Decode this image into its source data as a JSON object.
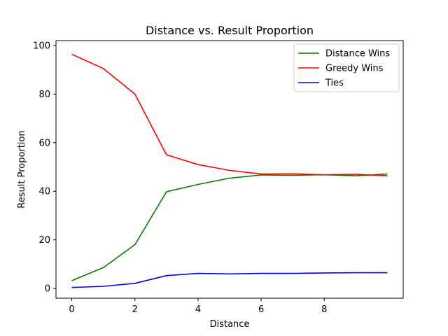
{
  "chart_data": {
    "type": "line",
    "title": "Distance vs. Result Proportion",
    "xlabel": "Distance",
    "ylabel": "Result Proportion",
    "x": [
      0,
      1,
      2,
      3,
      4,
      5,
      6,
      7,
      8,
      9,
      10
    ],
    "xlim": [
      -0.5,
      10.5
    ],
    "ylim": [
      -4,
      102
    ],
    "xticks": [
      0,
      2,
      4,
      6,
      8
    ],
    "yticks": [
      0,
      20,
      40,
      60,
      80,
      100
    ],
    "grid": false,
    "legend_position": "top-right",
    "series": [
      {
        "name": "Distance Wins",
        "color": "#008000",
        "values": [
          3.2,
          8.6,
          18.0,
          39.8,
          42.8,
          45.4,
          46.7,
          46.6,
          46.8,
          46.4,
          47.1
        ]
      },
      {
        "name": "Greedy Wins",
        "color": "#ff0000",
        "values": [
          96.4,
          90.5,
          80.0,
          55.0,
          51.0,
          48.6,
          47.1,
          47.2,
          46.8,
          47.0,
          46.4
        ]
      },
      {
        "name": "Ties",
        "color": "#0000ff",
        "values": [
          0.4,
          0.9,
          2.1,
          5.3,
          6.2,
          6.0,
          6.2,
          6.2,
          6.4,
          6.5,
          6.5
        ]
      }
    ]
  }
}
